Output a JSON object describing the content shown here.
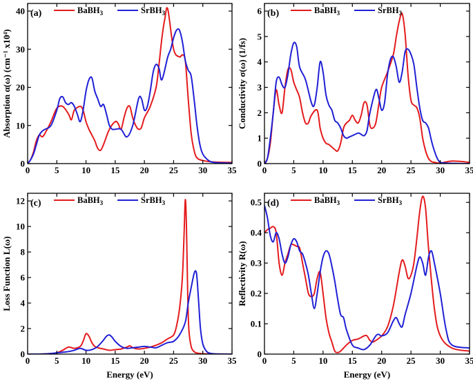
{
  "figure": {
    "xlabel": "Energy (eV)"
  },
  "colors": {
    "BaBH3": "#e41a1c",
    "SrBH3": "#1f1fd6"
  },
  "chart_data": [
    {
      "type": "line",
      "panel_label": "(a)",
      "xlabel": "",
      "ylabel": "Absorption α(ω) (cm⁻¹ x10⁴)",
      "xlim": [
        0,
        35
      ],
      "ylim": [
        0,
        42
      ],
      "xticks": [
        0,
        5,
        10,
        15,
        20,
        25,
        30,
        35
      ],
      "yticks": [
        0,
        10,
        20,
        30,
        40
      ],
      "legend": {
        "position": "top",
        "entries": [
          "BaBH3",
          "SrBH3"
        ]
      },
      "series": [
        {
          "name": "BaBH3",
          "color_key": "BaBH3",
          "x": [
            0,
            0.5,
            1,
            1.5,
            2,
            2.5,
            3,
            4,
            5,
            6,
            7,
            7.5,
            8,
            9,
            9.5,
            10,
            10.5,
            11,
            11.5,
            12,
            12.5,
            13,
            14,
            15,
            15.5,
            16,
            16.5,
            17,
            17.5,
            18,
            18.5,
            19,
            19.5,
            20,
            21,
            22,
            22.5,
            23,
            23.5,
            24,
            25,
            26,
            26.5,
            27,
            27.5,
            28,
            28.5,
            29,
            30,
            32,
            35
          ],
          "values": [
            0,
            1,
            3,
            6,
            7.5,
            7,
            8,
            11,
            14.5,
            15,
            13,
            11.5,
            14,
            15,
            14,
            11,
            9,
            7.5,
            6,
            4,
            3.5,
            5,
            9,
            11,
            10.5,
            9,
            12,
            14.5,
            15,
            12,
            10,
            9,
            9.5,
            12,
            15,
            20,
            26,
            33,
            38,
            40.5,
            30,
            28,
            28.5,
            27,
            17,
            8,
            3.5,
            1.5,
            0.8,
            0.4,
            0.3
          ]
        },
        {
          "name": "SrBH3",
          "color_key": "SrBH3",
          "x": [
            0,
            0.5,
            1,
            1.5,
            2,
            2.5,
            3,
            4,
            5,
            5.5,
            6,
            6.5,
            7,
            7.5,
            8,
            8.5,
            9,
            9.5,
            10,
            10.5,
            11,
            11.5,
            12,
            12.5,
            13,
            13.5,
            14,
            14.5,
            15,
            16,
            17,
            18,
            19,
            19.5,
            20,
            20.5,
            21,
            21.5,
            22,
            22.5,
            23,
            24,
            24.5,
            25,
            25.5,
            26,
            26.5,
            27,
            27.5,
            28,
            28.5,
            29,
            29.5,
            30,
            31,
            32,
            35
          ],
          "values": [
            0,
            1,
            2.5,
            5,
            7.5,
            8.5,
            9,
            10,
            14,
            17,
            17.5,
            16,
            15.5,
            16,
            15,
            13,
            11,
            14,
            19,
            22,
            22.5,
            19,
            17,
            15,
            15.5,
            13,
            10,
            9,
            9,
            9,
            7,
            10,
            17,
            17,
            14,
            15,
            19,
            24,
            26,
            25,
            22,
            28,
            30,
            33,
            35,
            35,
            32,
            27,
            24.5,
            23,
            17,
            10,
            5,
            2.5,
            0.8,
            0.3,
            0.1
          ]
        }
      ]
    },
    {
      "type": "line",
      "panel_label": "(b)",
      "xlabel": "",
      "ylabel": "Conductivity σ(ω) (1/fs)",
      "xlim": [
        0,
        35
      ],
      "ylim": [
        0,
        6.3
      ],
      "xticks": [
        0,
        5,
        10,
        15,
        20,
        25,
        30,
        35
      ],
      "yticks": [
        0,
        1,
        2,
        3,
        4,
        5,
        6
      ],
      "legend": {
        "position": "top",
        "entries": [
          "BaBH3",
          "SrBH3"
        ]
      },
      "series": [
        {
          "name": "BaBH3",
          "color_key": "BaBH3",
          "x": [
            0,
            0.5,
            1,
            1.5,
            2,
            2.5,
            3,
            3.5,
            4,
            4.5,
            5,
            5.5,
            6,
            6.5,
            7,
            7.5,
            8,
            9,
            9.5,
            10,
            10.5,
            11,
            12,
            12.5,
            13,
            13.5,
            14,
            14.5,
            15,
            15.5,
            16,
            16.5,
            17,
            17.5,
            18,
            18.5,
            19,
            19.5,
            20,
            21,
            22,
            22.5,
            23,
            23.5,
            24,
            24.5,
            25,
            25.5,
            26,
            26.5,
            27,
            27.5,
            28,
            28.5,
            29,
            30,
            32,
            35
          ],
          "values": [
            0,
            0.2,
            0.8,
            2.0,
            2.9,
            2.3,
            2.0,
            3.0,
            3.7,
            3.7,
            3.2,
            2.9,
            2.6,
            2.0,
            1.6,
            1.6,
            1.9,
            2.1,
            1.4,
            1.0,
            0.8,
            0.75,
            0.55,
            0.5,
            0.8,
            1.4,
            1.6,
            1.7,
            1.9,
            1.7,
            1.6,
            1.9,
            2.4,
            2.3,
            1.5,
            1.4,
            1.6,
            2.3,
            3.0,
            3.6,
            4.3,
            5.0,
            5.6,
            5.9,
            5.1,
            3.5,
            2.5,
            2.3,
            2.2,
            1.8,
            1.0,
            0.5,
            0.2,
            0.08,
            0.05,
            0.02,
            0.1,
            0.05
          ]
        },
        {
          "name": "SrBH3",
          "color_key": "SrBH3",
          "x": [
            0,
            0.5,
            1,
            1.5,
            2,
            2.5,
            3,
            3.5,
            4,
            4.5,
            5,
            5.5,
            6,
            7,
            8,
            8.5,
            9,
            9.5,
            10,
            10.5,
            11,
            11.5,
            12,
            12.5,
            13,
            13.5,
            14,
            14.5,
            15,
            16,
            16.5,
            17,
            17.5,
            18,
            19,
            19.5,
            20,
            20.5,
            21,
            21.5,
            22,
            22.5,
            23,
            23.5,
            24,
            24.5,
            25,
            25.5,
            26,
            26.5,
            27,
            27.5,
            28,
            28.5,
            29,
            29.5,
            30,
            31,
            32,
            35
          ],
          "values": [
            0,
            0.2,
            1.0,
            2.0,
            3.2,
            3.4,
            3.1,
            3.0,
            3.5,
            4.3,
            4.75,
            4.6,
            3.8,
            3.3,
            2.4,
            2.3,
            3.0,
            4.0,
            3.6,
            2.7,
            2.3,
            2.1,
            1.7,
            1.6,
            1.4,
            1.1,
            1.0,
            1.05,
            1.1,
            1.2,
            1.15,
            1.1,
            1.3,
            2.0,
            2.9,
            2.6,
            2.1,
            2.4,
            3.5,
            4.1,
            4.2,
            3.8,
            3.2,
            3.6,
            4.4,
            4.5,
            4.3,
            3.9,
            3.0,
            2.2,
            1.7,
            1.6,
            1.4,
            0.9,
            0.5,
            0.2,
            0.05,
            0.02,
            0.01,
            0.0
          ]
        }
      ]
    },
    {
      "type": "line",
      "panel_label": "(c)",
      "xlabel": "Energy (eV)",
      "ylabel": "Loss Function L(ω)",
      "xlim": [
        0,
        35
      ],
      "ylim": [
        0,
        12.6
      ],
      "xticks": [
        0,
        5,
        10,
        15,
        20,
        25,
        30,
        35
      ],
      "yticks": [
        0,
        2,
        4,
        6,
        8,
        10,
        12
      ],
      "legend": {
        "position": "top",
        "entries": [
          "BaBH3",
          "SrBH3"
        ]
      },
      "series": [
        {
          "name": "BaBH3",
          "color_key": "BaBH3",
          "x": [
            0,
            2,
            4,
            5,
            6,
            7,
            8,
            9,
            9.5,
            10,
            10.5,
            11,
            11.5,
            12,
            13,
            14,
            15,
            16,
            17,
            17.5,
            18,
            19,
            20,
            21,
            22,
            23,
            24,
            25,
            25.5,
            26,
            26.5,
            26.8,
            27,
            27.2,
            27.4,
            27.6,
            28,
            28.5,
            29,
            30,
            32,
            35
          ],
          "values": [
            0,
            0,
            0.05,
            0.1,
            0.3,
            0.55,
            0.45,
            0.6,
            1.0,
            1.6,
            1.4,
            0.9,
            0.6,
            0.5,
            0.4,
            0.3,
            0.35,
            0.4,
            0.55,
            0.65,
            0.5,
            0.4,
            0.45,
            0.55,
            0.7,
            0.9,
            1.2,
            1.5,
            2.2,
            3.5,
            6.0,
            9.5,
            12.1,
            10.0,
            5.0,
            2.0,
            0.6,
            0.2,
            0.08,
            0.03,
            0.01,
            0.0
          ]
        },
        {
          "name": "SrBH3",
          "color_key": "SrBH3",
          "x": [
            0,
            2,
            4,
            5,
            6,
            7,
            8,
            9,
            10,
            11,
            12,
            13,
            13.5,
            14,
            14.5,
            15,
            16,
            17,
            18,
            19,
            20,
            21,
            22,
            23,
            24,
            25,
            26,
            27,
            27.5,
            28,
            28.5,
            28.8,
            29,
            29.3,
            29.6,
            30,
            30.5,
            31,
            32,
            35
          ],
          "values": [
            0,
            0,
            0.05,
            0.1,
            0.15,
            0.2,
            0.3,
            0.45,
            0.3,
            0.35,
            0.6,
            1.1,
            1.4,
            1.5,
            1.3,
            1.0,
            0.6,
            0.45,
            0.5,
            0.55,
            0.6,
            0.55,
            0.5,
            0.7,
            0.9,
            1.0,
            1.5,
            2.5,
            4.0,
            5.2,
            6.3,
            6.5,
            6.0,
            4.0,
            2.0,
            0.8,
            0.3,
            0.1,
            0.02,
            0.0
          ]
        }
      ]
    },
    {
      "type": "line",
      "panel_label": "(d)",
      "xlabel": "Energy (eV)",
      "ylabel": "Reflectivity R(ω)",
      "xlim": [
        0,
        35
      ],
      "ylim": [
        0,
        0.53
      ],
      "xticks": [
        0,
        5,
        10,
        15,
        20,
        25,
        30,
        35
      ],
      "yticks": [
        0.0,
        0.1,
        0.2,
        0.3,
        0.4,
        0.5
      ],
      "legend": {
        "position": "top",
        "entries": [
          "BaBH3",
          "SrBH3"
        ]
      },
      "series": [
        {
          "name": "BaBH3",
          "color_key": "BaBH3",
          "x": [
            0,
            0.5,
            1,
            1.5,
            2,
            2.5,
            3,
            3.5,
            4,
            4.5,
            5,
            5.5,
            6,
            6.5,
            7,
            7.5,
            8,
            8.5,
            9,
            9.5,
            10,
            10.5,
            11,
            11.5,
            12,
            12.5,
            13,
            14,
            15,
            16,
            17,
            17.5,
            18,
            18.5,
            19,
            20,
            21,
            22,
            23,
            23.5,
            24,
            24.5,
            25,
            25.5,
            26,
            26.5,
            27,
            27.5,
            28,
            29,
            30,
            32,
            35
          ],
          "values": [
            0.4,
            0.41,
            0.415,
            0.42,
            0.4,
            0.3,
            0.26,
            0.3,
            0.33,
            0.36,
            0.36,
            0.355,
            0.35,
            0.3,
            0.25,
            0.2,
            0.19,
            0.2,
            0.25,
            0.27,
            0.2,
            0.12,
            0.07,
            0.04,
            0.01,
            0.005,
            0.01,
            0.03,
            0.045,
            0.05,
            0.06,
            0.06,
            0.045,
            0.04,
            0.045,
            0.06,
            0.09,
            0.16,
            0.27,
            0.31,
            0.29,
            0.25,
            0.26,
            0.3,
            0.38,
            0.47,
            0.52,
            0.48,
            0.35,
            0.15,
            0.06,
            0.02,
            0.01
          ]
        },
        {
          "name": "SrBH3",
          "color_key": "SrBH3",
          "x": [
            0,
            0.5,
            1,
            1.5,
            2,
            2.5,
            3,
            3.5,
            4,
            4.5,
            5,
            5.5,
            6,
            6.5,
            7,
            7.5,
            8,
            8.5,
            9,
            9.5,
            10,
            10.5,
            11,
            11.5,
            12,
            12.5,
            13,
            13.5,
            14,
            15,
            16,
            17,
            18,
            19,
            19.5,
            20,
            21,
            22,
            22.5,
            23,
            23.5,
            24,
            25,
            26,
            26.5,
            27,
            27.5,
            28,
            28.5,
            29,
            30,
            31,
            32,
            35
          ],
          "values": [
            0.49,
            0.45,
            0.39,
            0.37,
            0.4,
            0.38,
            0.33,
            0.3,
            0.32,
            0.36,
            0.38,
            0.37,
            0.34,
            0.33,
            0.3,
            0.26,
            0.2,
            0.15,
            0.2,
            0.27,
            0.32,
            0.34,
            0.33,
            0.29,
            0.24,
            0.18,
            0.13,
            0.12,
            0.08,
            0.03,
            0.02,
            0.015,
            0.03,
            0.06,
            0.065,
            0.06,
            0.07,
            0.11,
            0.12,
            0.1,
            0.09,
            0.13,
            0.2,
            0.29,
            0.32,
            0.3,
            0.26,
            0.32,
            0.34,
            0.3,
            0.2,
            0.08,
            0.03,
            0.02
          ]
        }
      ]
    }
  ]
}
